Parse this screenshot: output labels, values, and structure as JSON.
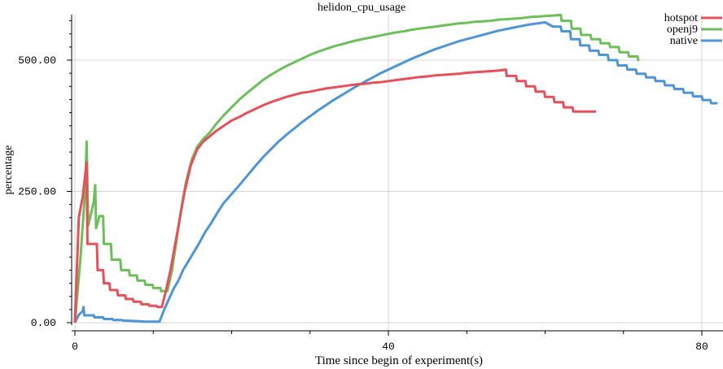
{
  "chart_data": {
    "type": "line",
    "title": "helidon_cpu_usage",
    "xlabel": "Time since begin of experiment(s)",
    "ylabel": "percentage",
    "xlim": [
      0,
      82
    ],
    "ylim": [
      -5,
      585
    ],
    "x_ticks": [
      0,
      40,
      80
    ],
    "x_tick_labels": [
      "0",
      "40",
      "80"
    ],
    "y_ticks": [
      0,
      250,
      500
    ],
    "y_tick_labels": [
      "0.00",
      "250.00",
      "500.00"
    ],
    "grid": true,
    "legend_position": "top-right",
    "series": [
      {
        "name": "hotspot",
        "color": "#e5505a",
        "points": [
          [
            0,
            0
          ],
          [
            0.5,
            200
          ],
          [
            1,
            240
          ],
          [
            1.5,
            305
          ],
          [
            1.6,
            150
          ],
          [
            2.8,
            150
          ],
          [
            2.9,
            100
          ],
          [
            3.6,
            100
          ],
          [
            3.7,
            75
          ],
          [
            4.4,
            75
          ],
          [
            4.5,
            62
          ],
          [
            5.4,
            62
          ],
          [
            5.5,
            52
          ],
          [
            6.4,
            52
          ],
          [
            6.5,
            45
          ],
          [
            7.4,
            45
          ],
          [
            7.5,
            40
          ],
          [
            8.4,
            40
          ],
          [
            8.5,
            35
          ],
          [
            9.4,
            35
          ],
          [
            9.5,
            32
          ],
          [
            10.4,
            32
          ],
          [
            10.5,
            30
          ],
          [
            11.1,
            30
          ],
          [
            11.6,
            60
          ],
          [
            12.2,
            100
          ],
          [
            12.8,
            150
          ],
          [
            13.4,
            200
          ],
          [
            14,
            250
          ],
          [
            14.8,
            300
          ],
          [
            15.6,
            330
          ],
          [
            16.4,
            345
          ],
          [
            17.2,
            355
          ],
          [
            18,
            365
          ],
          [
            19,
            375
          ],
          [
            20,
            385
          ],
          [
            21,
            392
          ],
          [
            22,
            400
          ],
          [
            23,
            407
          ],
          [
            24,
            414
          ],
          [
            25,
            420
          ],
          [
            26,
            425
          ],
          [
            27,
            430
          ],
          [
            28,
            434
          ],
          [
            29,
            438
          ],
          [
            30,
            440
          ],
          [
            31,
            443
          ],
          [
            32,
            446
          ],
          [
            33,
            448
          ],
          [
            34,
            450
          ],
          [
            35,
            452
          ],
          [
            36,
            454
          ],
          [
            37,
            455
          ],
          [
            38,
            457
          ],
          [
            39,
            458
          ],
          [
            40,
            460
          ],
          [
            41,
            462
          ],
          [
            42,
            464
          ],
          [
            43,
            466
          ],
          [
            44,
            468
          ],
          [
            45,
            469
          ],
          [
            46,
            471
          ],
          [
            47,
            472
          ],
          [
            48,
            473
          ],
          [
            49,
            474
          ],
          [
            50,
            476
          ],
          [
            51,
            477
          ],
          [
            52,
            478
          ],
          [
            53,
            479
          ],
          [
            54,
            480
          ],
          [
            55,
            482
          ],
          [
            55.1,
            470
          ],
          [
            56.3,
            470
          ],
          [
            56.4,
            460
          ],
          [
            57.5,
            460
          ],
          [
            57.6,
            450
          ],
          [
            58.7,
            450
          ],
          [
            58.8,
            440
          ],
          [
            59.9,
            440
          ],
          [
            60,
            430
          ],
          [
            61.1,
            430
          ],
          [
            61.2,
            420
          ],
          [
            62.3,
            420
          ],
          [
            62.4,
            410
          ],
          [
            63.5,
            410
          ],
          [
            63.6,
            402
          ],
          [
            66.5,
            402
          ]
        ]
      },
      {
        "name": "openj9",
        "color": "#6cbf5a",
        "points": [
          [
            0,
            0
          ],
          [
            0.7,
            120
          ],
          [
            1.3,
            250
          ],
          [
            1.5,
            345
          ],
          [
            1.7,
            185
          ],
          [
            2.4,
            230
          ],
          [
            2.6,
            262
          ],
          [
            2.7,
            180
          ],
          [
            3,
            195
          ],
          [
            3.1,
            203
          ],
          [
            3.6,
            203
          ],
          [
            3.7,
            150
          ],
          [
            4.6,
            150
          ],
          [
            4.7,
            120
          ],
          [
            5.8,
            120
          ],
          [
            5.9,
            100
          ],
          [
            6.9,
            100
          ],
          [
            7,
            90
          ],
          [
            7.9,
            90
          ],
          [
            8,
            80
          ],
          [
            8.9,
            80
          ],
          [
            9,
            72
          ],
          [
            9.9,
            72
          ],
          [
            10,
            66
          ],
          [
            10.9,
            66
          ],
          [
            11,
            60
          ],
          [
            11.8,
            60
          ],
          [
            12.4,
            100
          ],
          [
            13,
            160
          ],
          [
            13.6,
            220
          ],
          [
            14.2,
            270
          ],
          [
            14.9,
            310
          ],
          [
            15.6,
            335
          ],
          [
            16.4,
            350
          ],
          [
            17.2,
            362
          ],
          [
            18,
            378
          ],
          [
            19,
            395
          ],
          [
            20,
            410
          ],
          [
            21,
            425
          ],
          [
            22,
            438
          ],
          [
            23,
            450
          ],
          [
            24,
            462
          ],
          [
            25,
            472
          ],
          [
            26,
            481
          ],
          [
            27,
            489
          ],
          [
            28,
            496
          ],
          [
            29,
            503
          ],
          [
            30,
            510
          ],
          [
            31,
            516
          ],
          [
            32,
            521
          ],
          [
            33,
            526
          ],
          [
            34,
            530
          ],
          [
            35,
            534
          ],
          [
            36,
            538
          ],
          [
            37,
            541
          ],
          [
            38,
            544
          ],
          [
            39,
            547
          ],
          [
            40,
            550
          ],
          [
            41,
            553
          ],
          [
            42,
            555
          ],
          [
            43,
            558
          ],
          [
            44,
            560
          ],
          [
            45,
            562
          ],
          [
            46,
            564
          ],
          [
            47,
            566
          ],
          [
            48,
            568
          ],
          [
            49,
            570
          ],
          [
            50,
            571
          ],
          [
            51,
            573
          ],
          [
            52,
            574
          ],
          [
            53,
            575
          ],
          [
            54,
            577
          ],
          [
            55,
            578
          ],
          [
            56,
            579
          ],
          [
            57,
            580
          ],
          [
            58,
            582
          ],
          [
            59,
            583
          ],
          [
            60,
            584
          ],
          [
            61,
            585
          ],
          [
            62,
            586
          ],
          [
            62.1,
            575
          ],
          [
            63.3,
            575
          ],
          [
            63.4,
            560
          ],
          [
            64.5,
            560
          ],
          [
            64.6,
            548
          ],
          [
            65.8,
            548
          ],
          [
            65.9,
            540
          ],
          [
            67,
            540
          ],
          [
            67.1,
            532
          ],
          [
            68.2,
            532
          ],
          [
            68.3,
            525
          ],
          [
            69.4,
            525
          ],
          [
            69.5,
            515
          ],
          [
            70.6,
            515
          ],
          [
            70.7,
            507
          ],
          [
            71.8,
            507
          ],
          [
            71.9,
            498
          ]
        ]
      },
      {
        "name": "native",
        "color": "#4f94d4",
        "points": [
          [
            0,
            0
          ],
          [
            0.5,
            15
          ],
          [
            1,
            22
          ],
          [
            1.1,
            30
          ],
          [
            1.2,
            14
          ],
          [
            2.4,
            14
          ],
          [
            2.5,
            10
          ],
          [
            3.6,
            10
          ],
          [
            3.7,
            7
          ],
          [
            4.8,
            7
          ],
          [
            4.9,
            5
          ],
          [
            6,
            5
          ],
          [
            6.1,
            4
          ],
          [
            8,
            3
          ],
          [
            9,
            2
          ],
          [
            10,
            2
          ],
          [
            10.8,
            2
          ],
          [
            11.4,
            25
          ],
          [
            12,
            45
          ],
          [
            12.6,
            65
          ],
          [
            13.2,
            80
          ],
          [
            13.8,
            100
          ],
          [
            14.4,
            115
          ],
          [
            15,
            130
          ],
          [
            15.8,
            150
          ],
          [
            16.6,
            172
          ],
          [
            17.4,
            190
          ],
          [
            18.2,
            210
          ],
          [
            19,
            228
          ],
          [
            20,
            245
          ],
          [
            21,
            262
          ],
          [
            22,
            280
          ],
          [
            23,
            298
          ],
          [
            24,
            315
          ],
          [
            25,
            330
          ],
          [
            26,
            345
          ],
          [
            27,
            358
          ],
          [
            28,
            370
          ],
          [
            29,
            382
          ],
          [
            30,
            393
          ],
          [
            31,
            404
          ],
          [
            32,
            414
          ],
          [
            33,
            424
          ],
          [
            34,
            433
          ],
          [
            35,
            442
          ],
          [
            36,
            451
          ],
          [
            37,
            459
          ],
          [
            38,
            467
          ],
          [
            39,
            475
          ],
          [
            40,
            482
          ],
          [
            41,
            489
          ],
          [
            42,
            496
          ],
          [
            43,
            503
          ],
          [
            44,
            509
          ],
          [
            45,
            515
          ],
          [
            46,
            521
          ],
          [
            47,
            526
          ],
          [
            48,
            531
          ],
          [
            49,
            536
          ],
          [
            50,
            540
          ],
          [
            51,
            544
          ],
          [
            52,
            548
          ],
          [
            53,
            552
          ],
          [
            54,
            556
          ],
          [
            55,
            559
          ],
          [
            56,
            562
          ],
          [
            57,
            565
          ],
          [
            58,
            568
          ],
          [
            59,
            570
          ],
          [
            60,
            572
          ],
          [
            61,
            564
          ],
          [
            62,
            564
          ],
          [
            62.1,
            555
          ],
          [
            63.2,
            555
          ],
          [
            63.3,
            540
          ],
          [
            64.4,
            540
          ],
          [
            64.5,
            528
          ],
          [
            65.6,
            528
          ],
          [
            65.7,
            518
          ],
          [
            66.8,
            518
          ],
          [
            66.9,
            510
          ],
          [
            68,
            510
          ],
          [
            68.1,
            500
          ],
          [
            69.2,
            500
          ],
          [
            69.3,
            490
          ],
          [
            70.4,
            490
          ],
          [
            70.5,
            482
          ],
          [
            71.6,
            482
          ],
          [
            71.7,
            474
          ],
          [
            72.8,
            474
          ],
          [
            72.9,
            467
          ],
          [
            74,
            467
          ],
          [
            74.1,
            460
          ],
          [
            75.2,
            460
          ],
          [
            75.3,
            452
          ],
          [
            76.4,
            452
          ],
          [
            76.5,
            445
          ],
          [
            77.6,
            445
          ],
          [
            77.7,
            438
          ],
          [
            78.8,
            438
          ],
          [
            78.9,
            431
          ],
          [
            80,
            431
          ],
          [
            80.1,
            424
          ],
          [
            81.1,
            424
          ],
          [
            81.2,
            418
          ],
          [
            82,
            418
          ]
        ]
      }
    ]
  }
}
